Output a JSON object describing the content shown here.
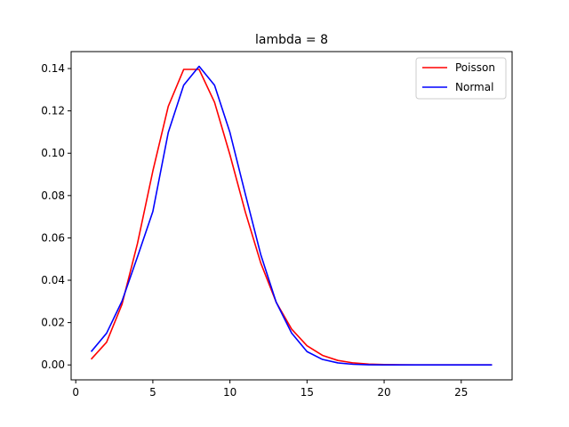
{
  "chart_data": {
    "type": "line",
    "title": "lambda = 8",
    "xlabel": "",
    "ylabel": "",
    "xlim": [
      -0.3,
      28.3
    ],
    "ylim": [
      -0.00705,
      0.148
    ],
    "xticks": [
      0,
      5,
      10,
      15,
      20,
      25
    ],
    "yticks": [
      0.0,
      0.02,
      0.04,
      0.06,
      0.08,
      0.1,
      0.12,
      0.14
    ],
    "ytick_labels": [
      "0.00",
      "0.02",
      "0.04",
      "0.06",
      "0.08",
      "0.10",
      "0.12",
      "0.14"
    ],
    "grid": false,
    "legend_position": "top-right",
    "x": [
      1,
      2,
      3,
      4,
      5,
      6,
      7,
      8,
      9,
      10,
      11,
      12,
      13,
      14,
      15,
      16,
      17,
      18,
      19,
      20,
      21,
      22,
      23,
      24,
      25,
      26,
      27
    ],
    "series": [
      {
        "name": "Poisson",
        "color": "#ff0000",
        "values": [
          0.00268,
          0.01073,
          0.02863,
          0.05725,
          0.0916,
          0.12214,
          0.13959,
          0.13959,
          0.12408,
          0.09926,
          0.07219,
          0.04813,
          0.02962,
          0.01692,
          0.00903,
          0.00451,
          0.00212,
          0.00094,
          0.0004,
          0.00016,
          6e-05,
          2e-05,
          1e-05,
          0.0,
          0.0,
          0.0,
          0.0
        ]
      },
      {
        "name": "Normal",
        "color": "#0000ff",
        "values": [
          0.00626,
          0.01498,
          0.03015,
          0.05099,
          0.07246,
          0.10981,
          0.13216,
          0.14105,
          0.13216,
          0.10981,
          0.08065,
          0.05208,
          0.0296,
          0.01505,
          0.0063,
          0.0026,
          0.00096,
          0.0003,
          8e-05,
          2e-05,
          0.0,
          0.0,
          0.0,
          0.0,
          0.0,
          0.0,
          0.0
        ]
      }
    ]
  }
}
